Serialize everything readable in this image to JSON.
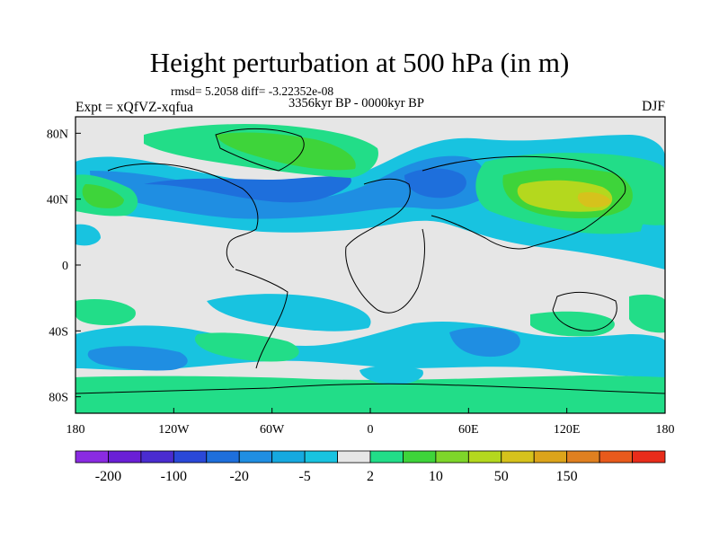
{
  "title": "Height perturbation at 500 hPa (in m)",
  "stats_line": "rmsd= 5.2058 diff= -3.22352e-08",
  "period": "3356kyr BP - 0000kyr BP",
  "experiment": "Expt = xQfVZ-xqfua",
  "season": "DJF",
  "map": {
    "background_color": "#e6e6e6",
    "x_ticks": [
      {
        "label": "180",
        "lon": -180
      },
      {
        "label": "120W",
        "lon": -120
      },
      {
        "label": "60W",
        "lon": -60
      },
      {
        "label": "0",
        "lon": 0
      },
      {
        "label": "60E",
        "lon": 60
      },
      {
        "label": "120E",
        "lon": 120
      },
      {
        "label": "180",
        "lon": 180
      }
    ],
    "y_ticks": [
      {
        "label": "80N",
        "lat": 80
      },
      {
        "label": "40N",
        "lat": 40
      },
      {
        "label": "0",
        "lat": 0
      },
      {
        "label": "40S",
        "lat": -40
      },
      {
        "label": "80S",
        "lat": -80
      }
    ]
  },
  "colorbar": {
    "colors": [
      "#8a2be2",
      "#6a1fd6",
      "#4a2cd0",
      "#2a48d8",
      "#1e6fdc",
      "#1f8ee2",
      "#16a9e0",
      "#18c3e0",
      "#e6e6e6",
      "#22dd88",
      "#3ed43a",
      "#7ed62a",
      "#b4d81e",
      "#d6c21c",
      "#dca41a",
      "#e08020",
      "#e85a1c",
      "#e82c1a"
    ],
    "labels": [
      {
        "text": "-200",
        "index": 1
      },
      {
        "text": "-100",
        "index": 3
      },
      {
        "text": "-20",
        "index": 5
      },
      {
        "text": "-5",
        "index": 7
      },
      {
        "text": "2",
        "index": 9
      },
      {
        "text": "10",
        "index": 11
      },
      {
        "text": "50",
        "index": 13
      },
      {
        "text": "150",
        "index": 15
      }
    ]
  }
}
